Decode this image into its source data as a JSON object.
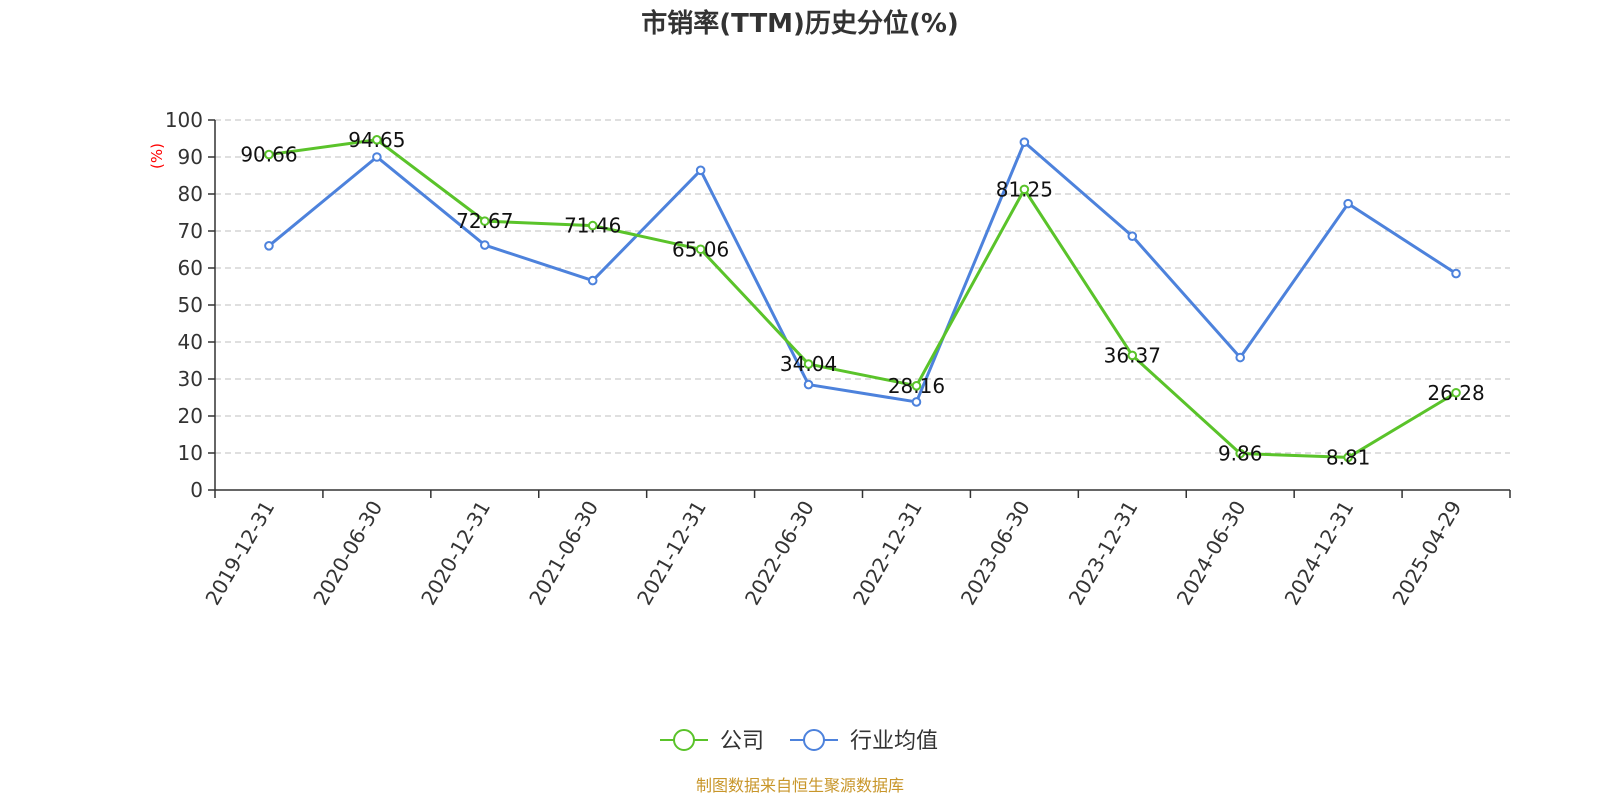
{
  "colors": {
    "company": "#5ac32a",
    "industry": "#4d82dc",
    "source": "#c8962a",
    "grid": "#cccccc",
    "unit": "#ff0000"
  },
  "chart_data": {
    "type": "line",
    "title": "市销率(TTM)历史分位(%)",
    "ylabel": "(%)",
    "ylim": [
      0,
      100
    ],
    "yticks": [
      "0",
      "10",
      "20",
      "30",
      "40",
      "50",
      "60",
      "70",
      "80",
      "90",
      "100"
    ],
    "categories": [
      "2019-12-31",
      "2020-06-30",
      "2020-12-31",
      "2021-06-30",
      "2021-12-31",
      "2022-06-30",
      "2022-12-31",
      "2023-06-30",
      "2023-12-31",
      "2024-06-30",
      "2024-12-31",
      "2025-04-29"
    ],
    "grid": true,
    "legend_position": "bottom-center",
    "series": [
      {
        "name": "公司",
        "color": "#5ac32a",
        "values": [
          90.66,
          94.65,
          72.67,
          71.46,
          65.06,
          34.04,
          28.16,
          81.25,
          36.37,
          9.86,
          8.81,
          26.28
        ],
        "labels": [
          "90.66",
          "94.65",
          "72.67",
          "71.46",
          "65.06",
          "34.04",
          "28.16",
          "81.25",
          "36.37",
          "9.86",
          "8.81",
          "26.28"
        ]
      },
      {
        "name": "行业均值",
        "color": "#4d82dc",
        "values": [
          66.0,
          90.0,
          66.2,
          56.6,
          86.4,
          28.5,
          23.8,
          94.0,
          68.6,
          35.8,
          77.4,
          58.5
        ]
      }
    ]
  },
  "footer": {
    "source": "制图数据来自恒生聚源数据库"
  }
}
